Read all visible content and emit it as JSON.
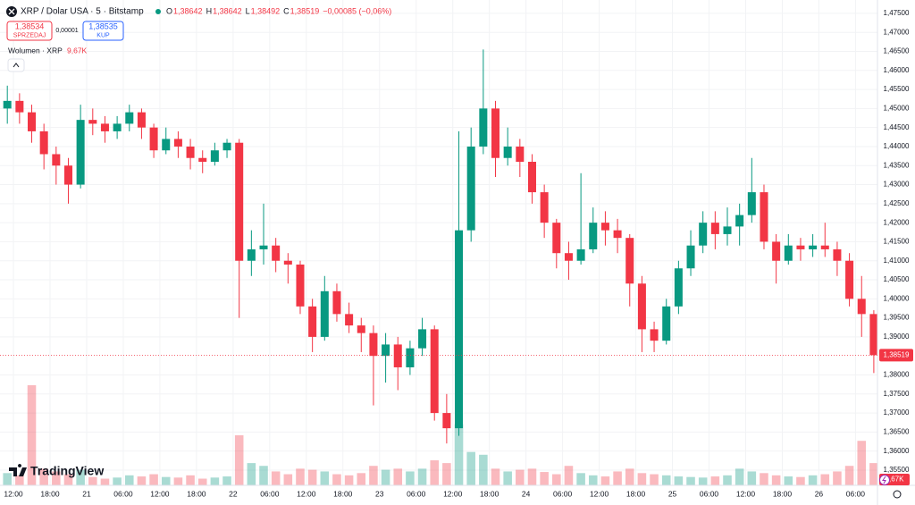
{
  "header": {
    "symbol": "XRP / Dolar USA · 5 · Bitstamp",
    "ohlc": [
      {
        "k": "O",
        "v": "1,38642"
      },
      {
        "k": "H",
        "v": "1,38642"
      },
      {
        "k": "L",
        "v": "1,38492"
      },
      {
        "k": "C",
        "v": "1,38519"
      }
    ],
    "change": "−0,00085 (−0,06%)",
    "sell_price": "1,38534",
    "sell_label": "SPRZEDAJ",
    "spread": "0,00001",
    "buy_price": "1,38535",
    "buy_label": "KUP",
    "volume_title": "Wolumen · XRP",
    "volume_value": "9,67K",
    "logo": "TradingView"
  },
  "chart_data": {
    "type": "candlestick",
    "up_color": "#089981",
    "down_color": "#f23645",
    "x": [
      10,
      12,
      14,
      16,
      18,
      20,
      22,
      24,
      26,
      28,
      30,
      32,
      34,
      36,
      38,
      40,
      42,
      44,
      46,
      48,
      50,
      52,
      54,
      56,
      58,
      60,
      62,
      64,
      66,
      68,
      70,
      72,
      74,
      76,
      78,
      80,
      82,
      84,
      86,
      88,
      90,
      92,
      94,
      96,
      98,
      100,
      102,
      104,
      106,
      108,
      110,
      112,
      114,
      116,
      118,
      120,
      122,
      124,
      126,
      128,
      130,
      132,
      134,
      136,
      138,
      140,
      142,
      144,
      146,
      148,
      150,
      152
    ],
    "ohlc": [
      [
        1.45,
        1.456,
        1.446,
        1.452
      ],
      [
        1.452,
        1.454,
        1.446,
        1.449
      ],
      [
        1.449,
        1.451,
        1.441,
        1.444
      ],
      [
        1.444,
        1.446,
        1.434,
        1.438
      ],
      [
        1.438,
        1.44,
        1.43,
        1.435
      ],
      [
        1.435,
        1.437,
        1.425,
        1.43
      ],
      [
        1.43,
        1.451,
        1.429,
        1.447
      ],
      [
        1.447,
        1.45,
        1.443,
        1.446
      ],
      [
        1.446,
        1.448,
        1.441,
        1.444
      ],
      [
        1.444,
        1.448,
        1.442,
        1.446
      ],
      [
        1.446,
        1.451,
        1.444,
        1.449
      ],
      [
        1.449,
        1.45,
        1.442,
        1.445
      ],
      [
        1.445,
        1.446,
        1.437,
        1.439
      ],
      [
        1.439,
        1.445,
        1.438,
        1.442
      ],
      [
        1.442,
        1.444,
        1.437,
        1.44
      ],
      [
        1.44,
        1.442,
        1.434,
        1.437
      ],
      [
        1.437,
        1.439,
        1.433,
        1.436
      ],
      [
        1.436,
        1.441,
        1.435,
        1.439
      ],
      [
        1.439,
        1.442,
        1.437,
        1.441
      ],
      [
        1.441,
        1.442,
        1.395,
        1.41
      ],
      [
        1.41,
        1.418,
        1.406,
        1.413
      ],
      [
        1.413,
        1.425,
        1.409,
        1.414
      ],
      [
        1.414,
        1.416,
        1.407,
        1.41
      ],
      [
        1.41,
        1.412,
        1.404,
        1.409
      ],
      [
        1.409,
        1.41,
        1.396,
        1.398
      ],
      [
        1.398,
        1.4,
        1.386,
        1.39
      ],
      [
        1.39,
        1.406,
        1.389,
        1.402
      ],
      [
        1.402,
        1.404,
        1.394,
        1.396
      ],
      [
        1.396,
        1.399,
        1.391,
        1.393
      ],
      [
        1.393,
        1.395,
        1.386,
        1.391
      ],
      [
        1.391,
        1.393,
        1.372,
        1.385
      ],
      [
        1.385,
        1.391,
        1.378,
        1.388
      ],
      [
        1.388,
        1.39,
        1.376,
        1.382
      ],
      [
        1.382,
        1.389,
        1.38,
        1.387
      ],
      [
        1.387,
        1.395,
        1.385,
        1.392
      ],
      [
        1.392,
        1.393,
        1.368,
        1.37
      ],
      [
        1.37,
        1.375,
        1.362,
        1.366
      ],
      [
        1.366,
        1.444,
        1.364,
        1.418
      ],
      [
        1.418,
        1.445,
        1.415,
        1.44
      ],
      [
        1.44,
        1.4655,
        1.438,
        1.45
      ],
      [
        1.45,
        1.452,
        1.432,
        1.437
      ],
      [
        1.437,
        1.445,
        1.435,
        1.44
      ],
      [
        1.44,
        1.442,
        1.432,
        1.436
      ],
      [
        1.436,
        1.438,
        1.425,
        1.428
      ],
      [
        1.428,
        1.43,
        1.416,
        1.42
      ],
      [
        1.42,
        1.421,
        1.408,
        1.412
      ],
      [
        1.412,
        1.415,
        1.405,
        1.41
      ],
      [
        1.41,
        1.433,
        1.409,
        1.413
      ],
      [
        1.413,
        1.424,
        1.412,
        1.42
      ],
      [
        1.42,
        1.423,
        1.414,
        1.418
      ],
      [
        1.418,
        1.421,
        1.412,
        1.416
      ],
      [
        1.416,
        1.417,
        1.398,
        1.404
      ],
      [
        1.404,
        1.406,
        1.386,
        1.392
      ],
      [
        1.392,
        1.394,
        1.386,
        1.389
      ],
      [
        1.389,
        1.4,
        1.388,
        1.398
      ],
      [
        1.398,
        1.41,
        1.396,
        1.408
      ],
      [
        1.408,
        1.418,
        1.406,
        1.414
      ],
      [
        1.414,
        1.423,
        1.412,
        1.42
      ],
      [
        1.42,
        1.423,
        1.413,
        1.417
      ],
      [
        1.417,
        1.424,
        1.414,
        1.419
      ],
      [
        1.419,
        1.425,
        1.414,
        1.422
      ],
      [
        1.422,
        1.437,
        1.42,
        1.428
      ],
      [
        1.428,
        1.43,
        1.413,
        1.415
      ],
      [
        1.415,
        1.417,
        1.404,
        1.41
      ],
      [
        1.41,
        1.417,
        1.409,
        1.414
      ],
      [
        1.414,
        1.416,
        1.41,
        1.413
      ],
      [
        1.413,
        1.417,
        1.411,
        1.414
      ],
      [
        1.414,
        1.42,
        1.411,
        1.413
      ],
      [
        1.413,
        1.415,
        1.406,
        1.41
      ],
      [
        1.41,
        1.412,
        1.398,
        1.4
      ],
      [
        1.4,
        1.406,
        1.39,
        1.396
      ],
      [
        1.396,
        1.397,
        1.3805,
        1.38519
      ]
    ],
    "volume": [
      22,
      18,
      180,
      30,
      25,
      20,
      28,
      15,
      12,
      14,
      18,
      16,
      20,
      15,
      14,
      18,
      12,
      14,
      16,
      90,
      40,
      35,
      25,
      20,
      30,
      28,
      25,
      20,
      18,
      22,
      35,
      28,
      30,
      25,
      30,
      45,
      40,
      110,
      60,
      55,
      30,
      25,
      28,
      30,
      24,
      20,
      35,
      22,
      18,
      16,
      25,
      30,
      22,
      20,
      18,
      16,
      15,
      14,
      16,
      18,
      30,
      25,
      22,
      18,
      16,
      15,
      18,
      20,
      25,
      35,
      80,
      40
    ],
    "last_label": "1,38519",
    "xlim": [
      9.8,
      153.6
    ],
    "xticks": [
      {
        "value": 12,
        "label": "12:00"
      },
      {
        "value": 18,
        "label": "18:00"
      },
      {
        "value": 24,
        "label": "21"
      },
      {
        "value": 30,
        "label": "06:00"
      },
      {
        "value": 36,
        "label": "12:00"
      },
      {
        "value": 42,
        "label": "18:00"
      },
      {
        "value": 48,
        "label": "22"
      },
      {
        "value": 54,
        "label": "06:00"
      },
      {
        "value": 60,
        "label": "12:00"
      },
      {
        "value": 66,
        "label": "18:00"
      },
      {
        "value": 72,
        "label": "23"
      },
      {
        "value": 78,
        "label": "06:00"
      },
      {
        "value": 84,
        "label": "12:00"
      },
      {
        "value": 90,
        "label": "18:00"
      },
      {
        "value": 96,
        "label": "24"
      },
      {
        "value": 102,
        "label": "06:00"
      },
      {
        "value": 108,
        "label": "12:00"
      },
      {
        "value": 114,
        "label": "18:00"
      },
      {
        "value": 120,
        "label": "25"
      },
      {
        "value": 126,
        "label": "06:00"
      },
      {
        "value": 132,
        "label": "12:00"
      },
      {
        "value": 138,
        "label": "18:00"
      },
      {
        "value": 144,
        "label": "26"
      },
      {
        "value": 150,
        "label": "06:00"
      }
    ],
    "ylim": [
      1.351,
      1.4785
    ],
    "yticks": [
      {
        "value": 1.355,
        "label": "1,35500"
      },
      {
        "value": 1.36,
        "label": "1,36000"
      },
      {
        "value": 1.365,
        "label": "1,36500"
      },
      {
        "value": 1.37,
        "label": "1,37000"
      },
      {
        "value": 1.375,
        "label": "1,37500"
      },
      {
        "value": 1.38,
        "label": "1,38000"
      },
      {
        "value": 1.39,
        "label": "1,39000"
      },
      {
        "value": 1.395,
        "label": "1,39500"
      },
      {
        "value": 1.4,
        "label": "1,40000"
      },
      {
        "value": 1.405,
        "label": "1,40500"
      },
      {
        "value": 1.41,
        "label": "1,41000"
      },
      {
        "value": 1.415,
        "label": "1,41500"
      },
      {
        "value": 1.42,
        "label": "1,42000"
      },
      {
        "value": 1.425,
        "label": "1,42500"
      },
      {
        "value": 1.43,
        "label": "1,43000"
      },
      {
        "value": 1.435,
        "label": "1,43500"
      },
      {
        "value": 1.44,
        "label": "1,44000"
      },
      {
        "value": 1.445,
        "label": "1,44500"
      },
      {
        "value": 1.45,
        "label": "1,45000"
      },
      {
        "value": 1.455,
        "label": "1,45500"
      },
      {
        "value": 1.46,
        "label": "1,46000"
      },
      {
        "value": 1.465,
        "label": "1,46500"
      },
      {
        "value": 1.47,
        "label": "1,47000"
      },
      {
        "value": 1.475,
        "label": "1,47500"
      }
    ],
    "grid": true
  }
}
